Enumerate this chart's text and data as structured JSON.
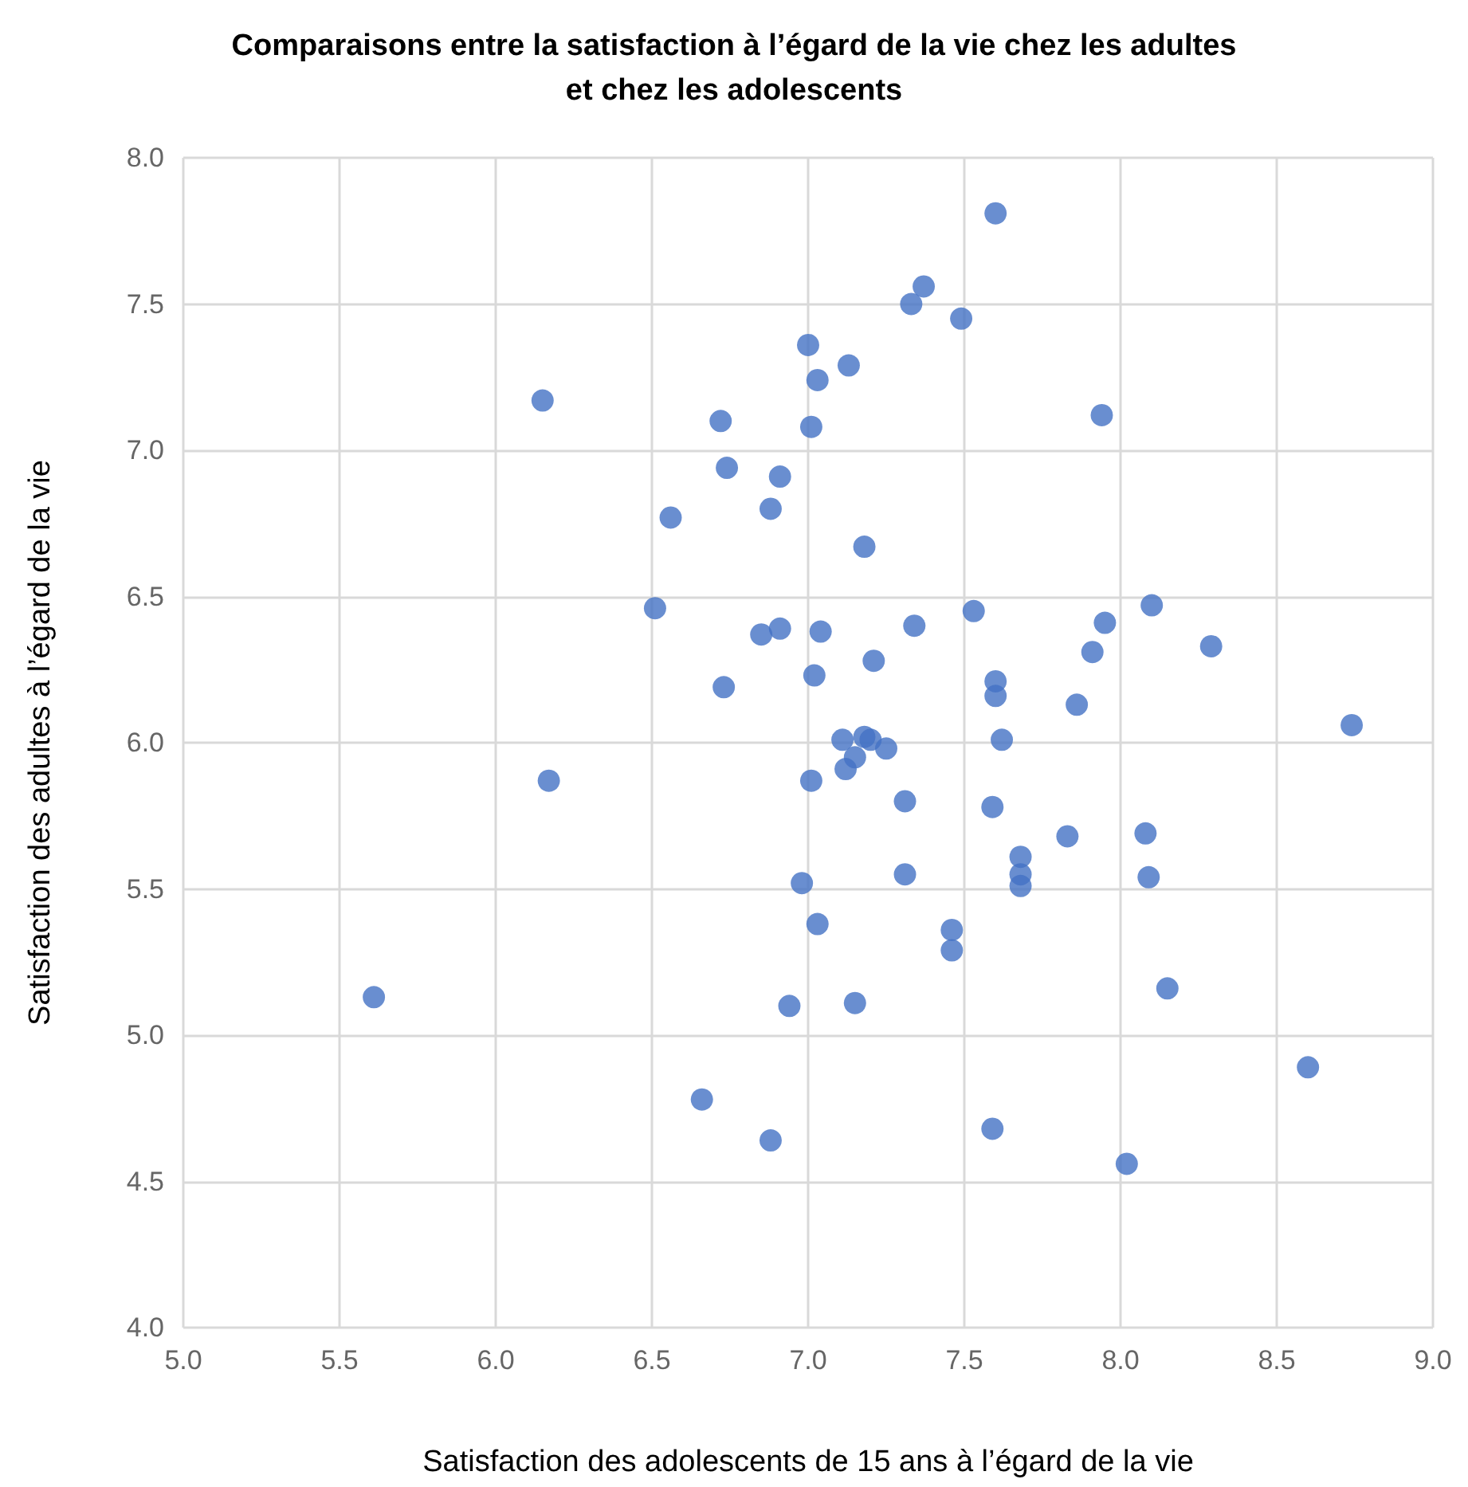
{
  "chart_data": {
    "type": "scatter",
    "title": "Comparaisons entre la satisfaction à l’égard de la vie chez les adultes\net chez les adolescents",
    "xlabel": "Satisfaction des adolescents de 15 ans à l’égard de la vie",
    "ylabel": "Satisfaction des adultes à l’égard de la vie",
    "x": [
      7.6,
      7.37,
      7.33,
      7.49,
      7.0,
      7.13,
      7.03,
      6.15,
      6.72,
      7.94,
      7.01,
      6.74,
      6.91,
      6.56,
      6.88,
      7.18,
      6.51,
      7.53,
      7.95,
      8.1,
      7.34,
      6.85,
      6.91,
      7.04,
      8.29,
      7.91,
      7.21,
      7.02,
      6.73,
      7.6,
      7.6,
      7.86,
      8.74,
      7.62,
      7.18,
      7.11,
      7.2,
      7.25,
      7.15,
      7.12,
      6.17,
      7.01,
      7.31,
      7.59,
      8.08,
      7.83,
      7.68,
      8.09,
      7.31,
      7.68,
      7.68,
      6.98,
      7.03,
      7.46,
      7.46,
      5.61,
      8.15,
      6.94,
      7.15,
      8.6,
      6.66,
      7.59,
      6.88,
      8.02
    ],
    "series": [
      {
        "color": "#4472c4",
        "values": [
          7.81,
          7.56,
          7.5,
          7.45,
          7.36,
          7.29,
          7.24,
          7.17,
          7.1,
          7.12,
          7.08,
          6.94,
          6.91,
          6.77,
          6.8,
          6.67,
          6.46,
          6.45,
          6.41,
          6.47,
          6.4,
          6.37,
          6.39,
          6.38,
          6.33,
          6.31,
          6.28,
          6.23,
          6.19,
          6.21,
          6.16,
          6.13,
          6.06,
          6.01,
          6.02,
          6.01,
          6.01,
          5.98,
          5.95,
          5.91,
          5.87,
          5.87,
          5.8,
          5.78,
          5.69,
          5.68,
          5.61,
          5.54,
          5.55,
          5.55,
          5.51,
          5.52,
          5.38,
          5.36,
          5.29,
          5.13,
          5.16,
          5.1,
          5.11,
          4.89,
          4.78,
          4.68,
          4.64,
          4.56
        ]
      }
    ],
    "xlim": [
      5.0,
      9.0
    ],
    "xticks": [
      {
        "value": 5,
        "label": "5.0"
      },
      5.5,
      {
        "value": 6,
        "label": "6.0"
      },
      6.5,
      {
        "value": 7,
        "label": "7.0"
      },
      7.5,
      {
        "value": 8,
        "label": "8.0"
      },
      8.5,
      {
        "value": 9,
        "label": "9.0"
      }
    ],
    "ylim": [
      4.0,
      8.0
    ],
    "yticks": [
      {
        "value": 4,
        "label": "4.0"
      },
      4.5,
      {
        "value": 5,
        "label": "5.0"
      },
      5.5,
      {
        "value": 6,
        "label": "6.0"
      },
      6.5,
      {
        "value": 7,
        "label": "7.0"
      },
      7.5,
      {
        "value": 8,
        "label": "8.0"
      }
    ],
    "grid": true,
    "marker": "circle"
  }
}
